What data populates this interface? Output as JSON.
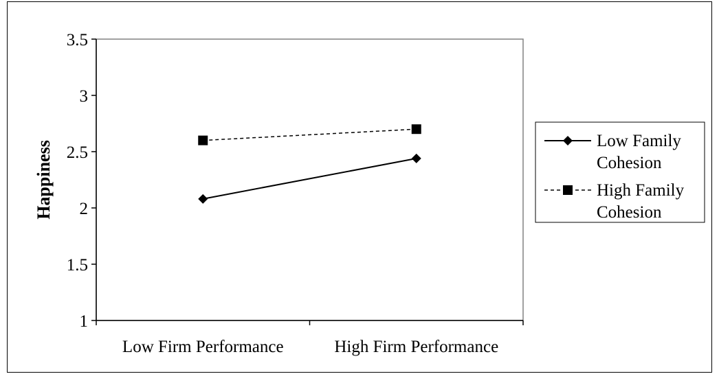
{
  "chart_data": {
    "type": "line",
    "title": "",
    "xlabel": "",
    "ylabel": "Happiness",
    "categories": [
      "Low Firm Performance",
      "High Firm Performance"
    ],
    "ylim": [
      1,
      3.5
    ],
    "yticks": [
      "1",
      "1.5",
      "2",
      "2.5",
      "3",
      "3.5"
    ],
    "grid": false,
    "legend_position": "right",
    "series": [
      {
        "name": "Low Family Cohesion",
        "values": [
          2.08,
          2.44
        ],
        "line_style": "solid",
        "marker": "diamond",
        "color": "#000000"
      },
      {
        "name": "High Family Cohesion",
        "values": [
          2.6,
          2.7
        ],
        "line_style": "dashed",
        "marker": "square",
        "color": "#000000"
      }
    ]
  },
  "legend": {
    "items": [
      {
        "line1": "Low Family",
        "line2": "Cohesion"
      },
      {
        "line1": "High Family",
        "line2": "Cohesion"
      }
    ]
  }
}
